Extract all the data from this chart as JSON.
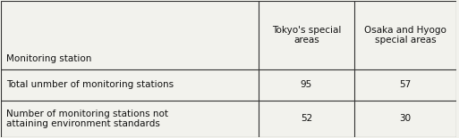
{
  "col_headers": [
    "Tokyo's special\nareas",
    "Osaka and Hyogo\nspecial areas"
  ],
  "row_labels": [
    "Monitoring station",
    "Total unmber of monitoring stations",
    "Number of monitoring stations not\nattaining environment standards"
  ],
  "values": [
    [
      "95",
      "57"
    ],
    [
      "52",
      "30"
    ]
  ],
  "bg_color": "#f2f2ed",
  "line_color": "#333333",
  "text_color": "#111111",
  "font_size": 7.5,
  "header_font_size": 7.5,
  "c0": 0.0,
  "c1": 0.565,
  "c2": 0.775,
  "c3": 1.0,
  "r0": 1.0,
  "r1": 0.5,
  "r2": 0.265,
  "r3": 0.0
}
